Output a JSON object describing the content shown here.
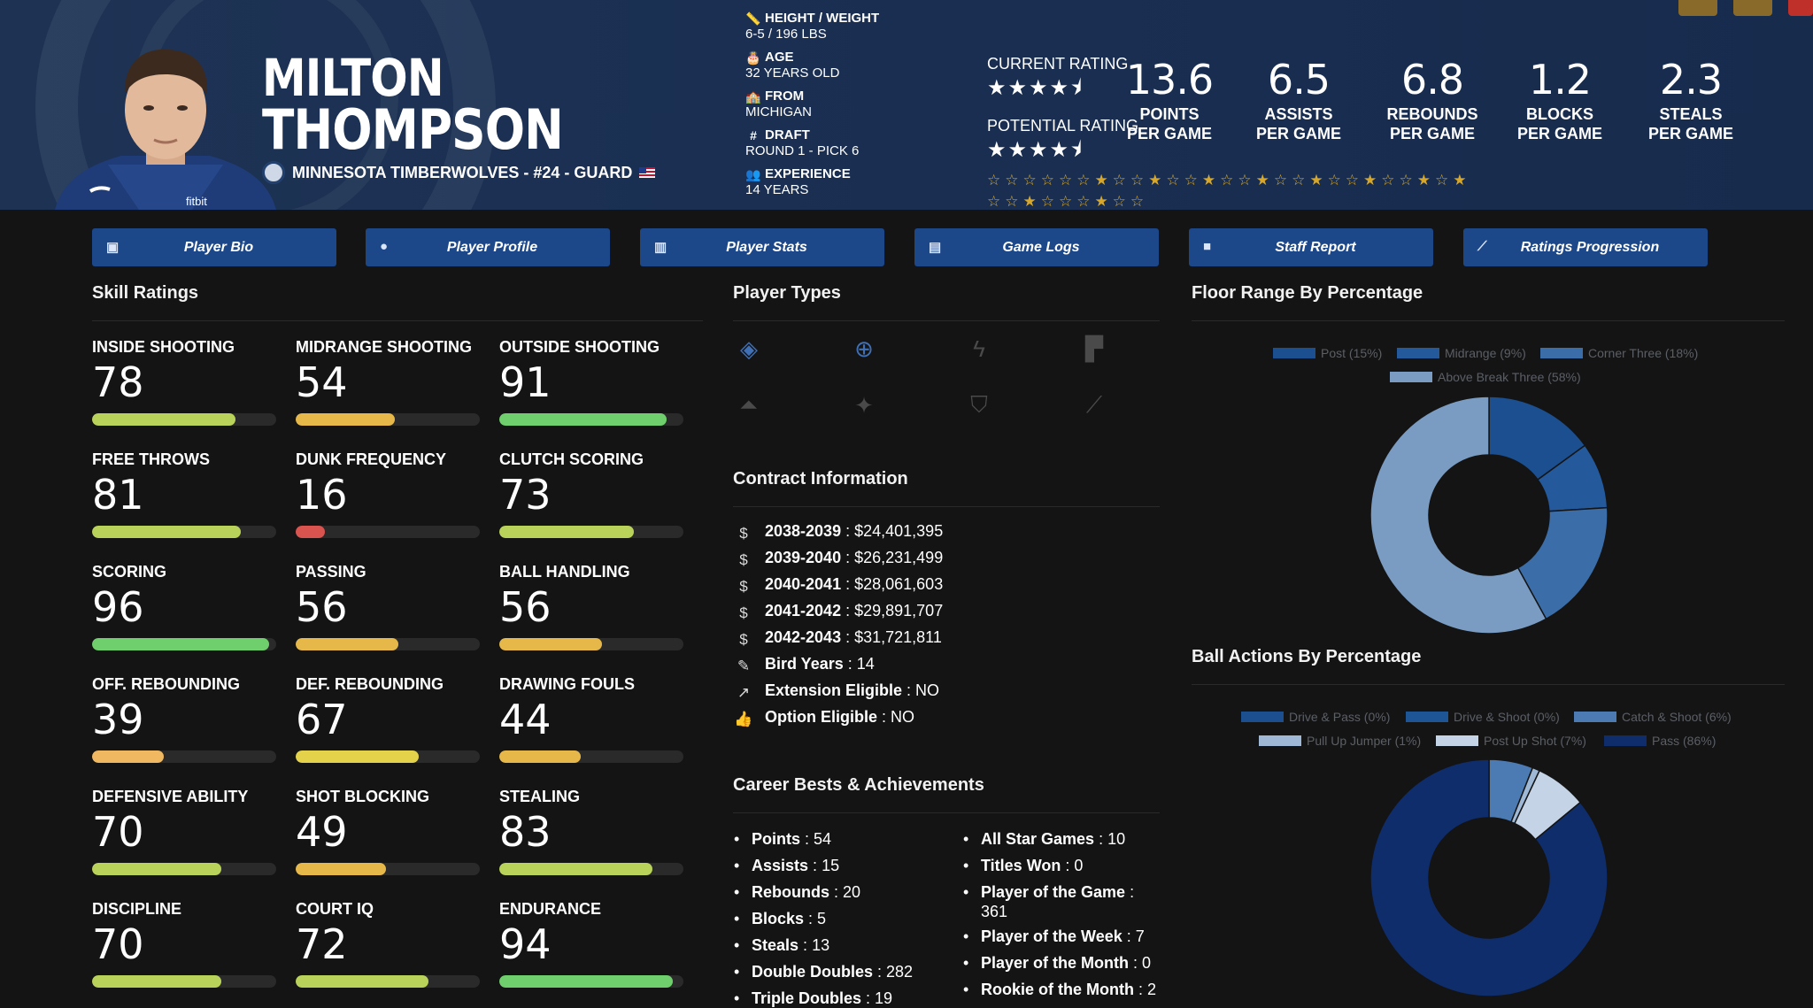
{
  "player": {
    "first_name": "MILTON",
    "last_name": "THOMPSON",
    "team_line": "MINNESOTA TIMBERWOLVES - #24 - GUARD",
    "jersey_brand": "fitbit"
  },
  "bio": [
    {
      "icon": "ruler-icon",
      "glyph": "📏",
      "label": "HEIGHT / WEIGHT",
      "value": "6-5 / 196 LBS"
    },
    {
      "icon": "cake-icon",
      "glyph": "🎂",
      "label": "AGE",
      "value": "32 YEARS OLD"
    },
    {
      "icon": "school-icon",
      "glyph": "🏫",
      "label": "FROM",
      "value": "MICHIGAN"
    },
    {
      "icon": "hash-icon",
      "glyph": "#",
      "label": "DRAFT",
      "value": "ROUND 1 - PICK 6"
    },
    {
      "icon": "users-icon",
      "glyph": "👥",
      "label": "EXPERIENCE",
      "value": "14 YEARS"
    }
  ],
  "ratings": {
    "current_label": "CURRENT RATING",
    "current_stars": "★★★★⯨",
    "potential_label": "POTENTIAL RATING",
    "potential_stars": "★★★★⯨"
  },
  "stats": [
    {
      "value": "13.6",
      "line1": "POINTS",
      "line2": "PER GAME"
    },
    {
      "value": "6.5",
      "line1": "ASSISTS",
      "line2": "PER GAME"
    },
    {
      "value": "6.8",
      "line1": "REBOUNDS",
      "line2": "PER GAME"
    },
    {
      "value": "1.2",
      "line1": "BLOCKS",
      "line2": "PER GAME"
    },
    {
      "value": "2.3",
      "line1": "STEALS",
      "line2": "PER GAME"
    }
  ],
  "badges": {
    "row1": "☆☆☆☆☆☆★☆☆★☆☆★☆☆★☆☆★☆☆★☆☆★☆★",
    "row2": "☆☆★☆☆☆★☆☆"
  },
  "nav": [
    {
      "icon": "id-card-icon",
      "glyph": "▣",
      "label": "Player Bio"
    },
    {
      "icon": "profile-icon",
      "glyph": "●",
      "label": "Player Profile"
    },
    {
      "icon": "bar-chart-icon",
      "glyph": "▥",
      "label": "Player Stats"
    },
    {
      "icon": "clipboard-icon",
      "glyph": "▤",
      "label": "Game Logs"
    },
    {
      "icon": "comment-icon",
      "glyph": "■",
      "label": "Staff Report"
    },
    {
      "icon": "line-chart-icon",
      "glyph": "⟋",
      "label": "Ratings Progression"
    }
  ],
  "sections": {
    "skills": "Skill Ratings",
    "player_types": "Player Types",
    "contract": "Contract Information",
    "achievements": "Career Bests & Achievements",
    "floor": "Floor Range By Percentage",
    "actions": "Ball Actions By Percentage"
  },
  "skills": [
    {
      "name": "INSIDE SHOOTING",
      "value": 78,
      "color": "#b9d35a"
    },
    {
      "name": "MIDRANGE SHOOTING",
      "value": 54,
      "color": "#e6b84a"
    },
    {
      "name": "OUTSIDE SHOOTING",
      "value": 91,
      "color": "#6fcf6c"
    },
    {
      "name": "FREE THROWS",
      "value": 81,
      "color": "#b9d35a"
    },
    {
      "name": "DUNK FREQUENCY",
      "value": 16,
      "color": "#d9534f"
    },
    {
      "name": "CLUTCH SCORING",
      "value": 73,
      "color": "#b9d35a"
    },
    {
      "name": "SCORING",
      "value": 96,
      "color": "#6fcf6c"
    },
    {
      "name": "PASSING",
      "value": 56,
      "color": "#e6b84a"
    },
    {
      "name": "BALL HANDLING",
      "value": 56,
      "color": "#e6b84a"
    },
    {
      "name": "OFF. REBOUNDING",
      "value": 39,
      "color": "#f0b860"
    },
    {
      "name": "DEF. REBOUNDING",
      "value": 67,
      "color": "#e3d24a"
    },
    {
      "name": "DRAWING FOULS",
      "value": 44,
      "color": "#e6b84a"
    },
    {
      "name": "DEFENSIVE ABILITY",
      "value": 70,
      "color": "#b9d35a"
    },
    {
      "name": "SHOT BLOCKING",
      "value": 49,
      "color": "#e6b84a"
    },
    {
      "name": "STEALING",
      "value": 83,
      "color": "#b9d35a"
    },
    {
      "name": "DISCIPLINE",
      "value": 70,
      "color": "#b9d35a"
    },
    {
      "name": "COURT IQ",
      "value": 72,
      "color": "#b9d35a"
    },
    {
      "name": "ENDURANCE",
      "value": 94,
      "color": "#6fcf6c"
    }
  ],
  "player_types": [
    {
      "icon": "basket-icon",
      "glyph": "◈",
      "active": true
    },
    {
      "icon": "crosshair-icon",
      "glyph": "⊕",
      "active": true
    },
    {
      "icon": "lightning-icon",
      "glyph": "ϟ",
      "active": false
    },
    {
      "icon": "paint-roller-icon",
      "glyph": "▛",
      "active": false
    },
    {
      "icon": "flask-icon",
      "glyph": "⏶",
      "active": false
    },
    {
      "icon": "magic-wand-icon",
      "glyph": "✦",
      "active": false
    },
    {
      "icon": "shield-icon",
      "glyph": "⛉",
      "active": false
    },
    {
      "icon": "broom-icon",
      "glyph": "⟋",
      "active": false
    }
  ],
  "contract": [
    {
      "icon": "money-icon",
      "glyph": "$",
      "label": "2038-2039",
      "value": "$24,401,395"
    },
    {
      "icon": "money-icon",
      "glyph": "$",
      "label": "2039-2040",
      "value": "$26,231,499"
    },
    {
      "icon": "money-icon",
      "glyph": "$",
      "label": "2040-2041",
      "value": "$28,061,603"
    },
    {
      "icon": "money-icon",
      "glyph": "$",
      "label": "2041-2042",
      "value": "$29,891,707"
    },
    {
      "icon": "money-icon",
      "glyph": "$",
      "label": "2042-2043",
      "value": "$31,721,811"
    },
    {
      "icon": "feather-icon",
      "glyph": "✎",
      "label": "Bird Years",
      "value": "14"
    },
    {
      "icon": "external-link-icon",
      "glyph": "↗",
      "label": "Extension Eligible",
      "value": "NO"
    },
    {
      "icon": "thumbs-up-icon",
      "glyph": "👍",
      "label": "Option Eligible",
      "value": "NO"
    }
  ],
  "achievements_left": [
    {
      "label": "Points",
      "value": "54"
    },
    {
      "label": "Assists",
      "value": "15"
    },
    {
      "label": "Rebounds",
      "value": "20"
    },
    {
      "label": "Blocks",
      "value": "5"
    },
    {
      "label": "Steals",
      "value": "13"
    },
    {
      "label": "Double Doubles",
      "value": "282"
    },
    {
      "label": "Triple Doubles",
      "value": "19"
    }
  ],
  "achievements_right": [
    {
      "label": "All Star Games",
      "value": "10"
    },
    {
      "label": "Titles Won",
      "value": "0"
    },
    {
      "label": "Player of the Game",
      "value": "361"
    },
    {
      "label": "Player of the Week",
      "value": "7"
    },
    {
      "label": "Player of the Month",
      "value": "0"
    },
    {
      "label": "Rookie of the Month",
      "value": "2"
    }
  ],
  "chart_data": [
    {
      "type": "pie",
      "title": "Floor Range By Percentage",
      "categories": [
        "Post (15%)",
        "Midrange (9%)",
        "Corner Three (18%)",
        "Above Break Three (58%)"
      ],
      "values": [
        15,
        9,
        18,
        58
      ],
      "colors": [
        "#1b4f8f",
        "#24599c",
        "#3b6ea8",
        "#7a9cc2"
      ],
      "legend": "top"
    },
    {
      "type": "pie",
      "title": "Ball Actions By Percentage",
      "categories": [
        "Drive & Pass (0%)",
        "Drive & Shoot (0%)",
        "Catch & Shoot (6%)",
        "Pull Up Jumper (1%)",
        "Post Up Shot (7%)",
        "Pass (86%)"
      ],
      "values": [
        0,
        0,
        6,
        1,
        7,
        86
      ],
      "colors": [
        "#1b4f8f",
        "#1e5597",
        "#4b7bb2",
        "#9fb8d6",
        "#c4d3e6",
        "#0f2d6b"
      ],
      "legend": "top"
    }
  ]
}
